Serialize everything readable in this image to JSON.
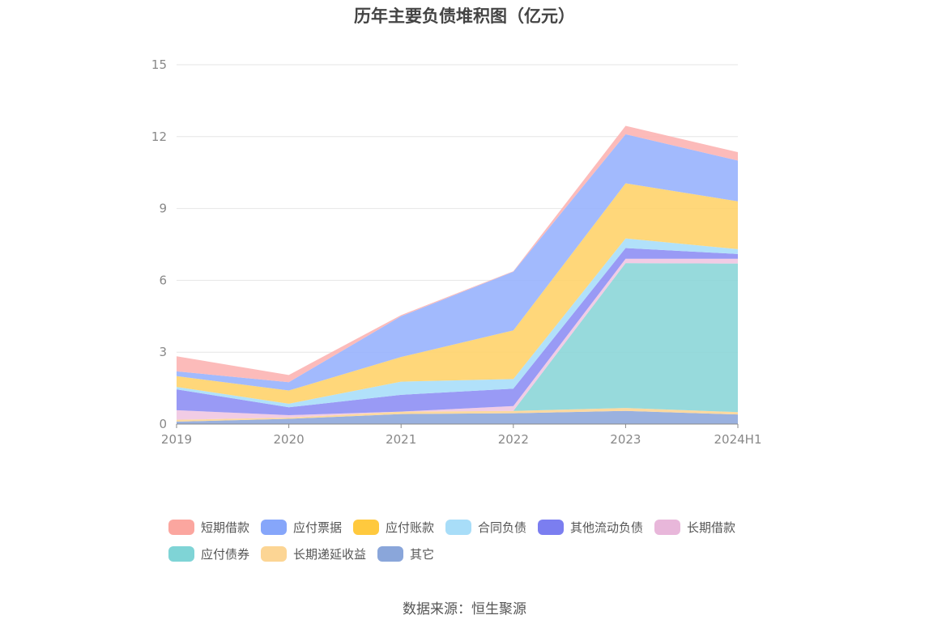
{
  "chart_data": {
    "type": "area",
    "stacked": true,
    "title": "历年主要负债堆积图（亿元）",
    "categories": [
      "2019",
      "2020",
      "2021",
      "2022",
      "2023",
      "2024H1"
    ],
    "y_ticks": [
      "0",
      "3",
      "6",
      "9",
      "12",
      "15"
    ],
    "ylim": [
      0,
      15
    ],
    "grid": true,
    "legend_position": "bottom",
    "series": [
      {
        "name": "其它",
        "color": "#8fa9dc",
        "values": [
          0.1,
          0.22,
          0.42,
          0.45,
          0.55,
          0.4
        ]
      },
      {
        "name": "长期递延收益",
        "color": "#fdd595",
        "values": [
          0.08,
          0.05,
          0.1,
          0.1,
          0.12,
          0.1
        ]
      },
      {
        "name": "应付债券",
        "color": "#8cd6d8",
        "values": [
          0.0,
          0.0,
          0.0,
          0.0,
          6.05,
          6.2
        ]
      },
      {
        "name": "长期借款",
        "color": "#f0c6e2",
        "values": [
          0.4,
          0.1,
          0.0,
          0.2,
          0.18,
          0.2
        ]
      },
      {
        "name": "其他流动负债",
        "color": "#8e8ff4",
        "values": [
          0.87,
          0.33,
          0.7,
          0.73,
          0.45,
          0.2
        ]
      },
      {
        "name": "合同负债",
        "color": "#a9defa",
        "values": [
          0.1,
          0.15,
          0.55,
          0.4,
          0.4,
          0.2
        ]
      },
      {
        "name": "应付账款",
        "color": "#ffd36b",
        "values": [
          0.45,
          0.55,
          1.03,
          2.03,
          2.3,
          2.0
        ]
      },
      {
        "name": "应付票据",
        "color": "#98b2fd",
        "values": [
          0.2,
          0.35,
          1.7,
          2.45,
          2.05,
          1.7
        ]
      },
      {
        "name": "短期借款",
        "color": "#fcb4b2",
        "values": [
          0.63,
          0.3,
          0.05,
          0.02,
          0.35,
          0.35
        ]
      }
    ],
    "legend": [
      {
        "name": "短期借款",
        "color": "#fba69f"
      },
      {
        "name": "应付票据",
        "color": "#86a6fa"
      },
      {
        "name": "应付账款",
        "color": "#ffc93e"
      },
      {
        "name": "合同负债",
        "color": "#a8ddf8"
      },
      {
        "name": "其他流动负债",
        "color": "#7b7ef0"
      },
      {
        "name": "长期借款",
        "color": "#e8b7da"
      },
      {
        "name": "应付债券",
        "color": "#7fd4d6"
      },
      {
        "name": "长期递延收益",
        "color": "#fcd594"
      },
      {
        "name": "其它",
        "color": "#8aa6da"
      }
    ]
  },
  "source_text": "数据来源：恒生聚源"
}
